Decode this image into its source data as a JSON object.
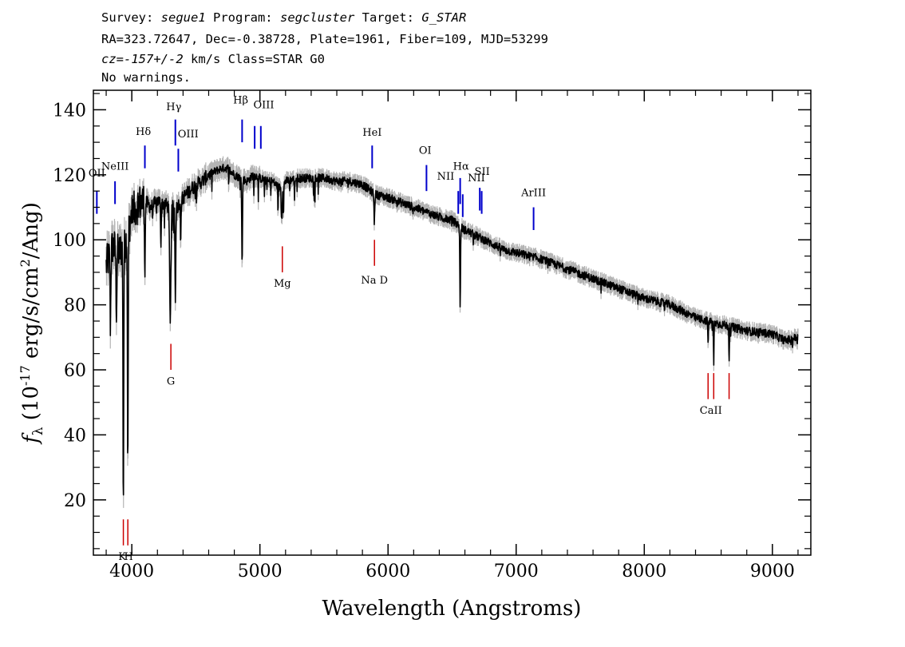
{
  "header": {
    "line1": [
      {
        "t": "Survey: ",
        "i": false
      },
      {
        "t": "segue1",
        "i": true
      },
      {
        "t": " Program: ",
        "i": false
      },
      {
        "t": "segcluster",
        "i": true
      },
      {
        "t": " Target: ",
        "i": false
      },
      {
        "t": "G_STAR",
        "i": true
      }
    ],
    "line2": "RA=323.72647, Dec=-0.38728, Plate=1961, Fiber=109, MJD=53299",
    "line3": [
      {
        "t": "cz=-157+/-2",
        "i": true
      },
      {
        "t": " km/s Class=STAR G0",
        "i": false
      }
    ],
    "line4": "No warnings."
  },
  "chart_data": {
    "type": "line",
    "xlabel": "Wavelength (Angstroms)",
    "ylabel_main": "f",
    "ylabel_sub": "λ",
    "ylabel_rest1": " (10",
    "ylabel_exp1": "-17",
    "ylabel_rest2": " erg/s/cm",
    "ylabel_exp2": "2",
    "ylabel_rest3": "/Ang)",
    "xlim": [
      3700,
      9300
    ],
    "ylim": [
      3,
      146
    ],
    "xticks": [
      4000,
      5000,
      6000,
      7000,
      8000,
      9000
    ],
    "yticks": [
      20,
      40,
      60,
      80,
      100,
      120,
      140
    ],
    "grid": false,
    "spectrum_range": [
      3800,
      9200
    ],
    "flux_color": "#000000",
    "error_color": "#b4b4b4",
    "emission_color": "#0000cc",
    "absorption_color": "#cc0000",
    "continuum_points": [
      [
        3800,
        92
      ],
      [
        3850,
        98
      ],
      [
        3900,
        96
      ],
      [
        3950,
        99
      ],
      [
        4000,
        108
      ],
      [
        4050,
        111
      ],
      [
        4100,
        112
      ],
      [
        4150,
        110
      ],
      [
        4200,
        112
      ],
      [
        4250,
        111
      ],
      [
        4300,
        110
      ],
      [
        4350,
        110
      ],
      [
        4400,
        113
      ],
      [
        4450,
        115
      ],
      [
        4500,
        117
      ],
      [
        4550,
        118
      ],
      [
        4600,
        120
      ],
      [
        4650,
        121
      ],
      [
        4700,
        122
      ],
      [
        4750,
        122
      ],
      [
        4800,
        120
      ],
      [
        4850,
        119
      ],
      [
        4900,
        118
      ],
      [
        4950,
        120
      ],
      [
        5000,
        119
      ],
      [
        5050,
        118
      ],
      [
        5100,
        118
      ],
      [
        5150,
        116
      ],
      [
        5200,
        118
      ],
      [
        5300,
        119
      ],
      [
        5400,
        119
      ],
      [
        5500,
        119
      ],
      [
        5600,
        118
      ],
      [
        5700,
        118
      ],
      [
        5800,
        117
      ],
      [
        5900,
        114
      ],
      [
        6000,
        113
      ],
      [
        6200,
        110
      ],
      [
        6400,
        107
      ],
      [
        6500,
        106
      ],
      [
        6600,
        103
      ],
      [
        6700,
        101
      ],
      [
        6800,
        99
      ],
      [
        6900,
        97
      ],
      [
        7000,
        96
      ],
      [
        7200,
        94
      ],
      [
        7400,
        91
      ],
      [
        7600,
        88
      ],
      [
        7800,
        85
      ],
      [
        8000,
        82
      ],
      [
        8200,
        80
      ],
      [
        8400,
        76
      ],
      [
        8500,
        75
      ],
      [
        8600,
        74
      ],
      [
        8800,
        72
      ],
      [
        9000,
        71
      ],
      [
        9100,
        69
      ],
      [
        9200,
        70
      ]
    ],
    "absorption_features": [
      {
        "x": 3833,
        "depth": 22,
        "w": 4
      },
      {
        "x": 3880,
        "depth": 18,
        "w": 5
      },
      {
        "x": 3934,
        "depth": 80,
        "w": 4
      },
      {
        "x": 3969,
        "depth": 74,
        "w": 4
      },
      {
        "x": 4102,
        "depth": 22,
        "w": 4
      },
      {
        "x": 4227,
        "depth": 14,
        "w": 3
      },
      {
        "x": 4300,
        "depth": 34,
        "w": 7
      },
      {
        "x": 4340,
        "depth": 30,
        "w": 4
      },
      {
        "x": 4383,
        "depth": 10,
        "w": 3
      },
      {
        "x": 4861,
        "depth": 27,
        "w": 4
      },
      {
        "x": 5167,
        "depth": 9,
        "w": 3
      },
      {
        "x": 5173,
        "depth": 9,
        "w": 3
      },
      {
        "x": 5184,
        "depth": 10,
        "w": 3
      },
      {
        "x": 5270,
        "depth": 6,
        "w": 3
      },
      {
        "x": 5893,
        "depth": 9,
        "w": 4
      },
      {
        "x": 6563,
        "depth": 24,
        "w": 4
      },
      {
        "x": 8498,
        "depth": 8,
        "w": 3
      },
      {
        "x": 8542,
        "depth": 13,
        "w": 3
      },
      {
        "x": 8662,
        "depth": 10,
        "w": 3
      }
    ],
    "emission_lines": [
      {
        "label": "OII",
        "x": 3727,
        "y1": 108,
        "y2": 115
      },
      {
        "label": "NeIII",
        "x": 3869,
        "y1": 111,
        "y2": 118
      },
      {
        "label": "Hδ",
        "x": 4102,
        "y1": 122,
        "y2": 129
      },
      {
        "label": "Hγ",
        "x": 4340,
        "y1": 129,
        "y2": 137
      },
      {
        "label": "OIII",
        "x": 4363,
        "y1": 121,
        "y2": 128
      },
      {
        "label": "Hβ",
        "x": 4861,
        "y1": 130,
        "y2": 137
      },
      {
        "label": "OIII",
        "x": 4959,
        "y1": 128,
        "y2": 135
      },
      {
        "label": "OIII",
        "x": 5007,
        "y1": 128,
        "y2": 135
      },
      {
        "label": "HeI",
        "x": 5876,
        "y1": 122,
        "y2": 129
      },
      {
        "label": "OI",
        "x": 6300,
        "y1": 115,
        "y2": 123
      },
      {
        "label": "NII",
        "x": 6548,
        "y1": 108,
        "y2": 115
      },
      {
        "label": "Hα",
        "x": 6563,
        "y1": 111,
        "y2": 119
      },
      {
        "label": "NII",
        "x": 6583,
        "y1": 107,
        "y2": 114
      },
      {
        "label": "SII",
        "x": 6716,
        "y1": 109,
        "y2": 116
      },
      {
        "label": "SII",
        "x": 6731,
        "y1": 108,
        "y2": 115
      },
      {
        "label": "ArIII",
        "x": 7136,
        "y1": 103,
        "y2": 110
      }
    ],
    "absorption_lines": [
      {
        "label": "K",
        "x": 3934,
        "y1": 6,
        "y2": 14
      },
      {
        "label": "H",
        "x": 3969,
        "y1": 6,
        "y2": 14
      },
      {
        "label": "G",
        "x": 4305,
        "y1": 60,
        "y2": 68
      },
      {
        "label": "Mg",
        "x": 5175,
        "y1": 90,
        "y2": 98
      },
      {
        "label": "Na D",
        "x": 5894,
        "y1": 92,
        "y2": 100
      },
      {
        "label": "CaII",
        "x": 8498,
        "y1": 51,
        "y2": 59
      },
      {
        "label": "CaII",
        "x": 8542,
        "y1": 51,
        "y2": 59
      },
      {
        "label": "CaII",
        "x": 8662,
        "y1": 51,
        "y2": 59
      }
    ],
    "line_label_texts": [
      {
        "text": "OII",
        "x": 3727,
        "y": 119.5,
        "anchor": "middle"
      },
      {
        "text": "NeIII",
        "x": 3869,
        "y": 121.5,
        "anchor": "middle"
      },
      {
        "text": "Hδ",
        "x": 4090,
        "y": 132.3,
        "anchor": "middle"
      },
      {
        "text": "Hγ",
        "x": 4328,
        "y": 139.8,
        "anchor": "middle"
      },
      {
        "text": "OIII",
        "x": 4440,
        "y": 131.5,
        "anchor": "middle"
      },
      {
        "text": "Hβ",
        "x": 4850,
        "y": 142,
        "anchor": "middle"
      },
      {
        "text": "OIII",
        "x": 5030,
        "y": 140.5,
        "anchor": "middle"
      },
      {
        "text": "HeI",
        "x": 5876,
        "y": 132,
        "anchor": "middle"
      },
      {
        "text": "OI",
        "x": 6290,
        "y": 126.5,
        "anchor": "middle"
      },
      {
        "text": "NII",
        "x": 6450,
        "y": 118.5,
        "anchor": "middle"
      },
      {
        "text": "Hα",
        "x": 6570,
        "y": 121.5,
        "anchor": "middle"
      },
      {
        "text": "NII",
        "x": 6690,
        "y": 118,
        "anchor": "middle"
      },
      {
        "text": "SII",
        "x": 6735,
        "y": 120,
        "anchor": "middle"
      },
      {
        "text": "ArIII",
        "x": 7136,
        "y": 113.5,
        "anchor": "middle"
      },
      {
        "text": "Mg",
        "x": 5175,
        "y": 85.5,
        "anchor": "middle"
      },
      {
        "text": "Na  D",
        "x": 5894,
        "y": 86.5,
        "anchor": "middle"
      },
      {
        "text": "G",
        "x": 4305,
        "y": 55.5,
        "anchor": "middle"
      },
      {
        "text": "K",
        "x": 3925,
        "y": 1.5,
        "anchor": "middle"
      },
      {
        "text": "H",
        "x": 3975,
        "y": 1.5,
        "anchor": "middle"
      },
      {
        "text": "CaII",
        "x": 8520,
        "y": 46.5,
        "anchor": "middle"
      }
    ]
  }
}
